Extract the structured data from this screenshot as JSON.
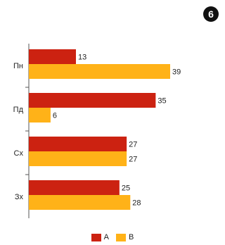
{
  "badge": {
    "number": "6"
  },
  "chart_data": {
    "type": "bar",
    "orientation": "horizontal",
    "categories": [
      "Пн",
      "Пд",
      "Сх",
      "Зх"
    ],
    "series": [
      {
        "name": "A",
        "color": "#cc2211",
        "values": [
          13,
          35,
          27,
          25
        ]
      },
      {
        "name": "B",
        "color": "#ffb218",
        "values": [
          39,
          6,
          27,
          28
        ]
      }
    ],
    "xlim": [
      0,
      39
    ],
    "data_labels": true,
    "grid": false,
    "legend": "bottom-center",
    "title": "",
    "xlabel": "",
    "ylabel": ""
  }
}
